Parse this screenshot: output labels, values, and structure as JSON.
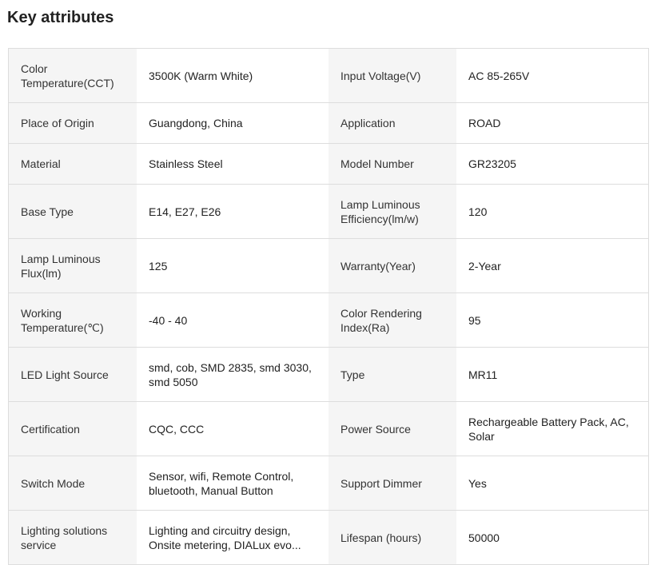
{
  "title": "Key attributes",
  "rows": [
    [
      {
        "label": "Color Temperature(CCT)",
        "value": "3500K (Warm White)"
      },
      {
        "label": "Input Voltage(V)",
        "value": "AC 85-265V"
      }
    ],
    [
      {
        "label": "Place of Origin",
        "value": "Guangdong, China"
      },
      {
        "label": "Application",
        "value": "ROAD"
      }
    ],
    [
      {
        "label": "Material",
        "value": "Stainless Steel"
      },
      {
        "label": "Model Number",
        "value": "GR23205"
      }
    ],
    [
      {
        "label": "Base Type",
        "value": "E14, E27, E26"
      },
      {
        "label": "Lamp Luminous Efficiency(lm/w)",
        "value": "120"
      }
    ],
    [
      {
        "label": "Lamp Luminous Flux(lm)",
        "value": "125"
      },
      {
        "label": "Warranty(Year)",
        "value": "2-Year"
      }
    ],
    [
      {
        "label": "Working Temperature(℃)",
        "value": "-40 - 40"
      },
      {
        "label": "Color Rendering Index(Ra)",
        "value": "95"
      }
    ],
    [
      {
        "label": "LED Light Source",
        "value": "smd, cob, SMD 2835, smd 3030, smd 5050"
      },
      {
        "label": "Type",
        "value": "MR11"
      }
    ],
    [
      {
        "label": "Certification",
        "value": "CQC, CCC"
      },
      {
        "label": "Power Source",
        "value": "Rechargeable Battery Pack, AC, Solar"
      }
    ],
    [
      {
        "label": "Switch Mode",
        "value": "Sensor, wifi, Remote Control, bluetooth, Manual Button"
      },
      {
        "label": "Support Dimmer",
        "value": "Yes"
      }
    ],
    [
      {
        "label": "Lighting solutions service",
        "value": "Lighting and circuitry design, Onsite metering, DIALux evo..."
      },
      {
        "label": "Lifespan (hours)",
        "value": "50000"
      }
    ]
  ]
}
